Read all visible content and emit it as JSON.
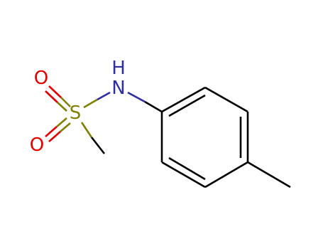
{
  "nodes": [
    {
      "label": "O"
    },
    {
      "label": "O"
    },
    {
      "label": "S"
    },
    {
      "label": "N"
    },
    {
      "label": "H"
    }
  ]
}
